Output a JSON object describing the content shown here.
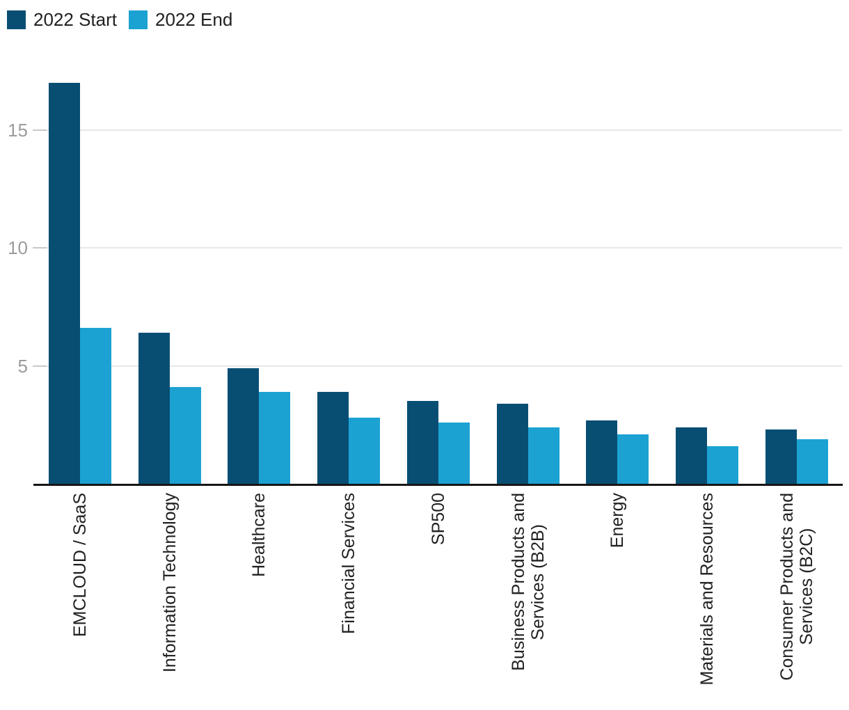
{
  "chart_data": {
    "type": "bar",
    "title": "",
    "xlabel": "",
    "ylabel": "",
    "categories": [
      "EMCLOUD / SaaS",
      "Information Technology",
      "Healthcare",
      "Financial Services",
      "SP500",
      "Business Products and\nServices (B2B)",
      "Energy",
      "Materials and Resources",
      "Consumer Products and\nServices (B2C)"
    ],
    "series": [
      {
        "name": "2022 Start",
        "color": "#084e73",
        "values": [
          17.0,
          6.4,
          4.9,
          3.9,
          3.5,
          3.4,
          2.7,
          2.4,
          2.3
        ]
      },
      {
        "name": "2022 End",
        "color": "#1ca2d2",
        "values": [
          6.6,
          4.1,
          3.9,
          2.8,
          2.6,
          2.4,
          2.1,
          1.6,
          1.9
        ]
      }
    ],
    "yticks": [
      5,
      10,
      15
    ],
    "ylim": [
      0,
      17.5
    ],
    "grid": "horizontal",
    "legend_position": "top-left",
    "x_label_rotation_deg": -90,
    "axis_colors": {
      "grid": "#e7e7e7",
      "tick": "#c9c9c9",
      "baseline": "#161616",
      "y_tick_label": "#9b9b9b",
      "x_tick_label": "#212121"
    }
  }
}
